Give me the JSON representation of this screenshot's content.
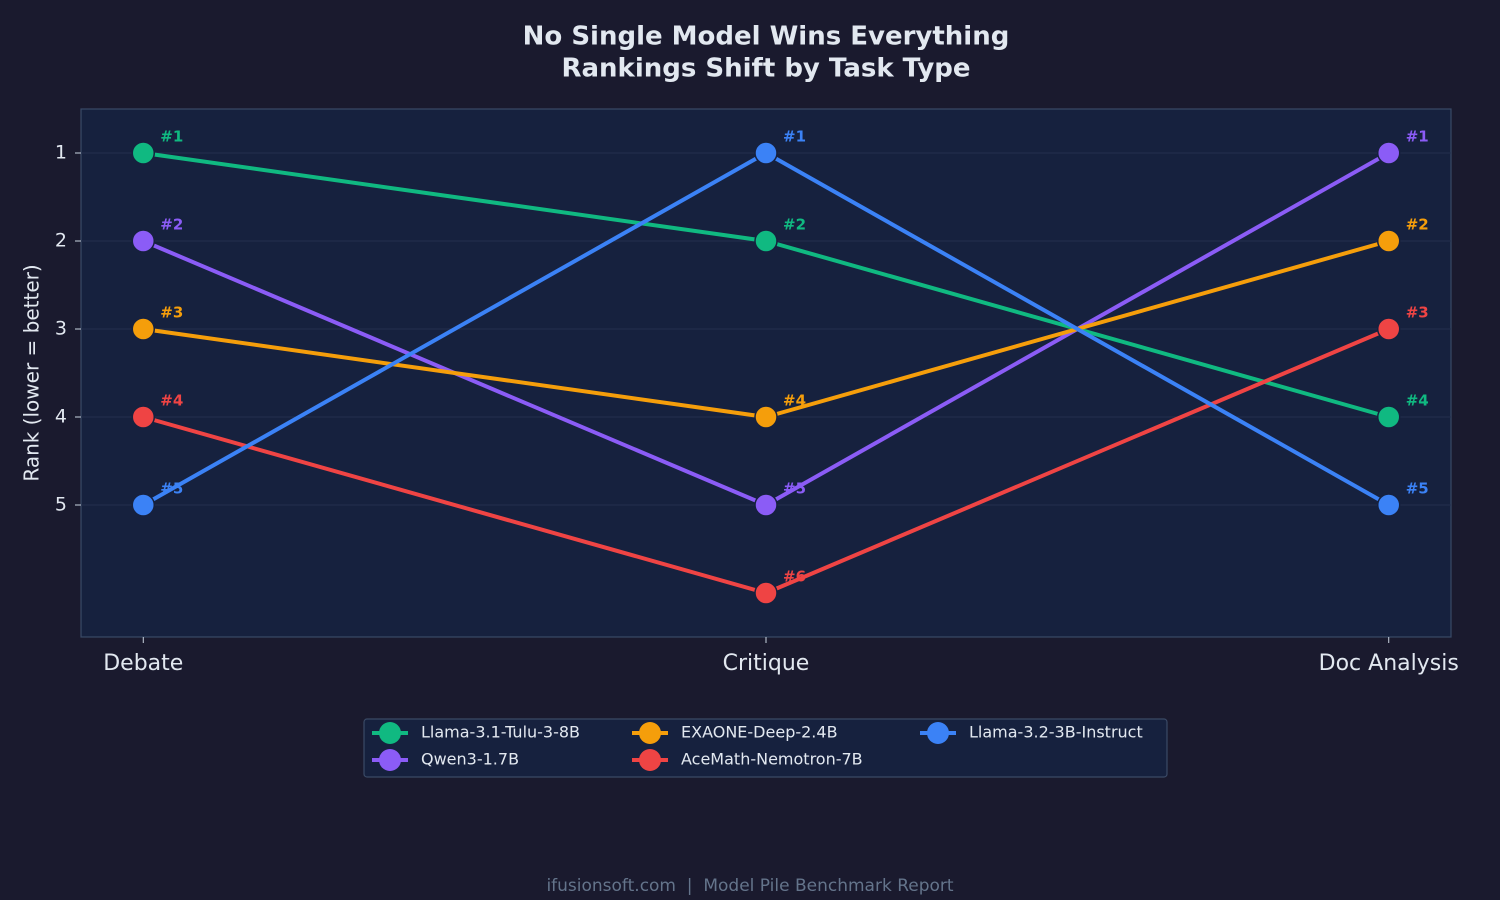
{
  "chart_data": {
    "type": "line",
    "title": "No Single Model Wins Everything",
    "subtitle": "Rankings Shift by Task Type",
    "y_label": "Rank (lower = better)",
    "footer": "ifusionsoft.com  |  Model Pile Benchmark Report",
    "categories": [
      "Debate",
      "Critique",
      "Doc Analysis"
    ],
    "ylim": [
      0.5,
      6.5
    ],
    "y_inverted": true,
    "yticks": [
      1,
      2,
      3,
      4,
      5
    ],
    "grid": true,
    "legend": "bottom",
    "series": [
      {
        "name": "Llama-3.1-Tulu-3-8B",
        "color": "#10b981",
        "values": [
          1,
          2,
          4
        ],
        "value_labels": [
          "#1",
          "#2",
          "#4"
        ]
      },
      {
        "name": "Qwen3-1.7B",
        "color": "#8b5cf6",
        "values": [
          2,
          5,
          1
        ],
        "value_labels": [
          "#2",
          "#5",
          "#1"
        ]
      },
      {
        "name": "EXAONE-Deep-2.4B",
        "color": "#f59e0b",
        "values": [
          3,
          4,
          2
        ],
        "value_labels": [
          "#3",
          "#4",
          "#2"
        ]
      },
      {
        "name": "AceMath-Nemotron-7B",
        "color": "#ef4444",
        "values": [
          4,
          6,
          3
        ],
        "value_labels": [
          "#4",
          "#6",
          "#3"
        ]
      },
      {
        "name": "Llama-3.2-3B-Instruct",
        "color": "#3b82f6",
        "values": [
          5,
          1,
          5
        ],
        "value_labels": [
          "#5",
          "#1",
          "#5"
        ]
      }
    ]
  }
}
